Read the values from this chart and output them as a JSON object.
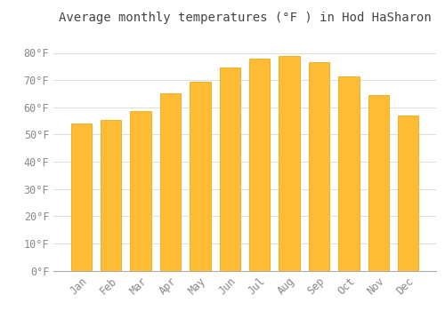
{
  "title": "Average monthly temperatures (°F ) in Hod HaSharon",
  "months": [
    "Jan",
    "Feb",
    "Mar",
    "Apr",
    "May",
    "Jun",
    "Jul",
    "Aug",
    "Sep",
    "Oct",
    "Nov",
    "Dec"
  ],
  "values": [
    54,
    55.5,
    58.5,
    65,
    69.5,
    74.5,
    78,
    79,
    76.5,
    71.5,
    64.5,
    57
  ],
  "bar_color": "#FFBB33",
  "bar_edge_color": "#E8A000",
  "background_color": "#FFFFFF",
  "grid_color": "#DDDDDD",
  "tick_label_color": "#888888",
  "title_color": "#444444",
  "ylim": [
    0,
    88
  ],
  "yticks": [
    0,
    10,
    20,
    30,
    40,
    50,
    60,
    70,
    80
  ],
  "ytick_labels": [
    "0°F",
    "10°F",
    "20°F",
    "30°F",
    "40°F",
    "50°F",
    "60°F",
    "70°F",
    "80°F"
  ],
  "title_fontsize": 10,
  "tick_fontsize": 8.5,
  "bar_width": 0.7
}
